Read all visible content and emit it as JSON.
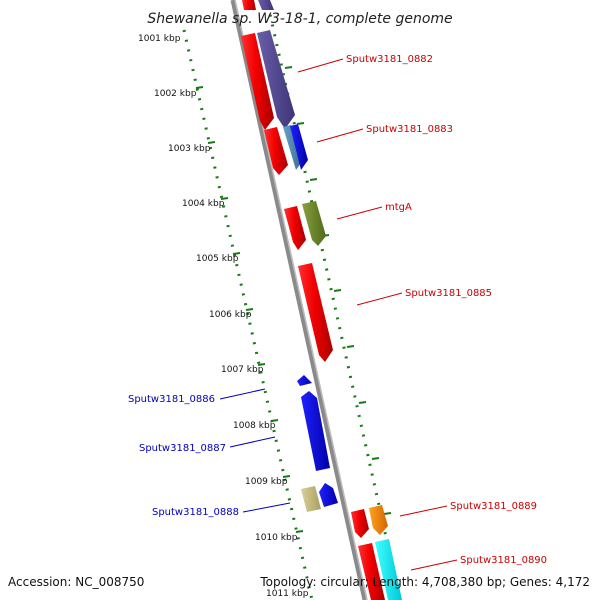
{
  "title": "Shewanella sp. W3-18-1, complete genome",
  "accession_text": "Accession: NC_008750",
  "summary_text": "Topology: circular; Length: 4,708,380 bp; Genes: 4,172",
  "ticks": [
    "1001 kbp",
    "1002 kbp",
    "1003 kbp",
    "1004 kbp",
    "1005 kbp",
    "1006 kbp",
    "1007 kbp",
    "1008 kbp",
    "1009 kbp",
    "1010 kbp",
    "1011 kbp"
  ],
  "colors": {
    "backbone": "#8a8a8a",
    "tick_dots": "#1a7a1a",
    "forward_label": "#cc0000",
    "reverse_label": "#0000bb"
  },
  "forward_genes": [
    {
      "label": "Sputw3181_0882"
    },
    {
      "label": "Sputw3181_0883"
    },
    {
      "label": "mtgA"
    },
    {
      "label": "Sputw3181_0885"
    },
    {
      "label": "Sputw3181_0889"
    },
    {
      "label": "Sputw3181_0890"
    }
  ],
  "reverse_genes": [
    {
      "label": "Sputw3181_0886"
    },
    {
      "label": "Sputw3181_0887"
    },
    {
      "label": "Sputw3181_0888"
    }
  ]
}
